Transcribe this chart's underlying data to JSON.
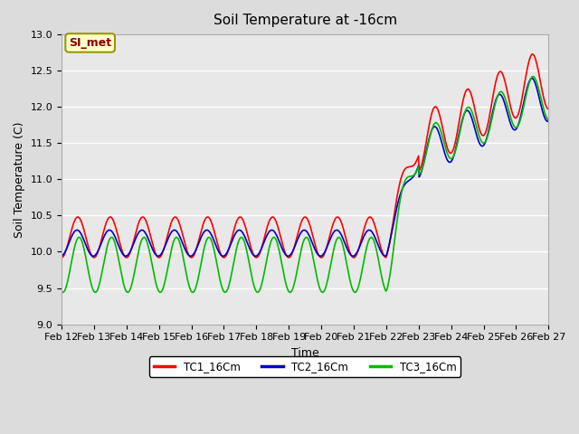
{
  "title": "Soil Temperature at -16cm",
  "xlabel": "Time",
  "ylabel": "Soil Temperature (C)",
  "ylim": [
    9.0,
    13.0
  ],
  "yticks": [
    9.0,
    9.5,
    10.0,
    10.5,
    11.0,
    11.5,
    12.0,
    12.5,
    13.0
  ],
  "background_color": "#dcdcdc",
  "plot_bg_color": "#e8e8e8",
  "line_colors": [
    "#ff0000",
    "#0000cc",
    "#00bb00"
  ],
  "line_labels": [
    "TC1_16Cm",
    "TC2_16Cm",
    "TC3_16Cm"
  ],
  "legend_label": "SI_met",
  "legend_label_color": "#880000",
  "legend_bg": "#ffffcc",
  "legend_border": "#999900",
  "x_tick_labels": [
    "Feb 12",
    "Feb 13",
    "Feb 14",
    "Feb 15",
    "Feb 16",
    "Feb 17",
    "Feb 18",
    "Feb 19",
    "Feb 20",
    "Feb 21",
    "Feb 22",
    "Feb 23",
    "Feb 24",
    "Feb 25",
    "Feb 26",
    "Feb 27"
  ],
  "n_days": 15,
  "pts_per_day": 48
}
